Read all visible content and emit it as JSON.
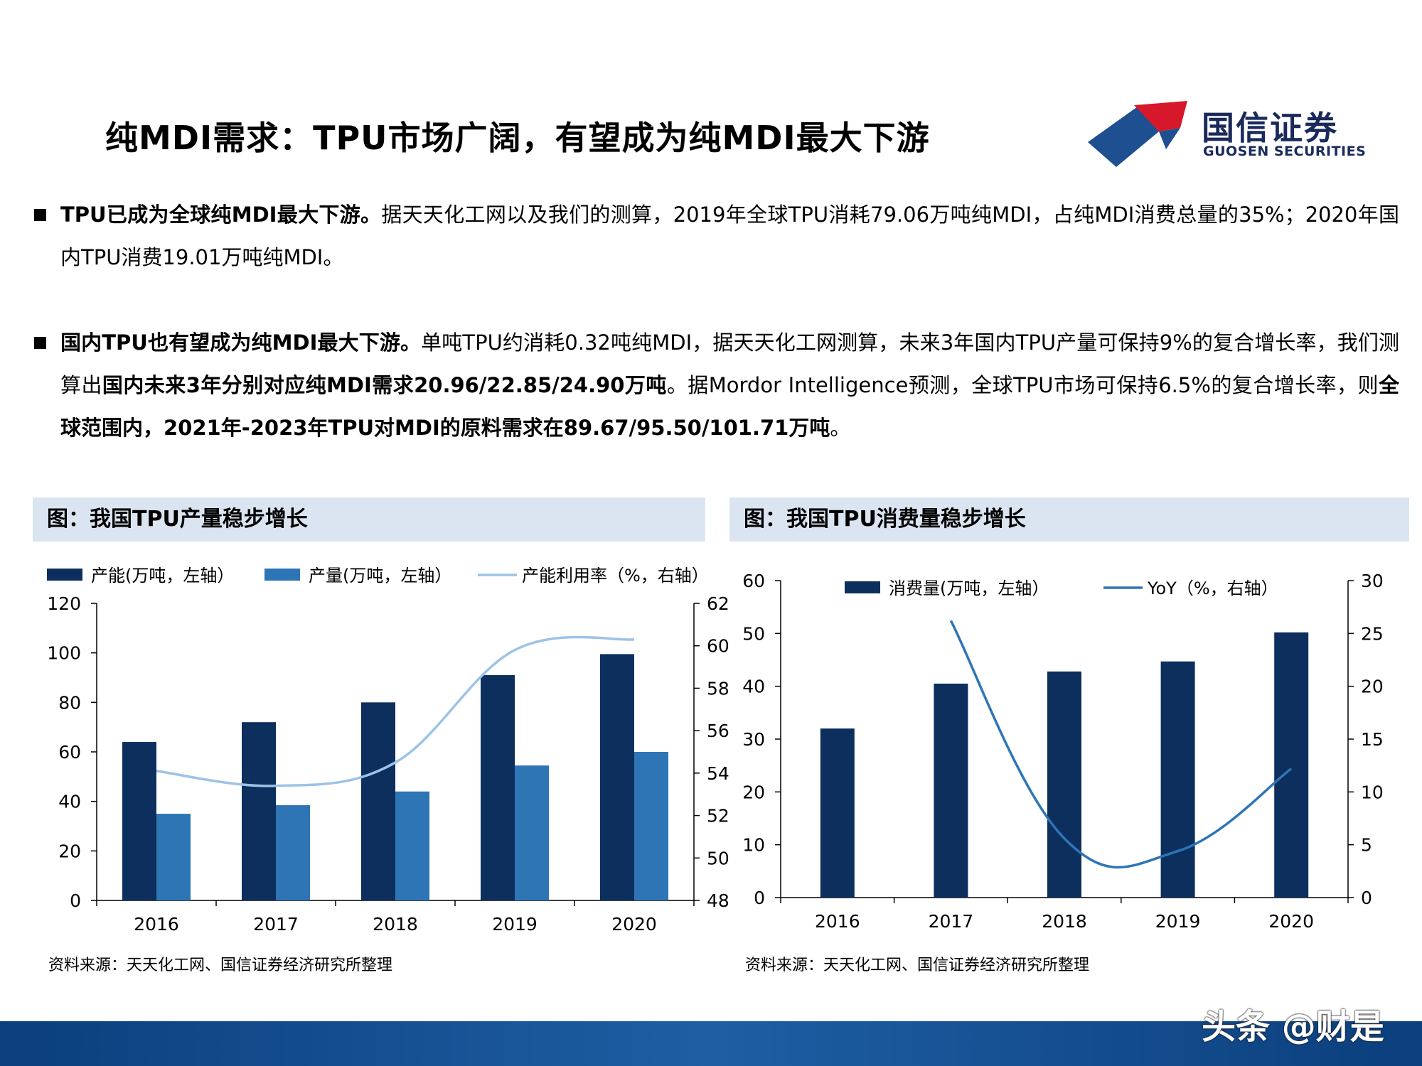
{
  "title": "纯MDI需求：TPU市场广阔，有望成为纯MDI最大下游",
  "logo": {
    "cn": "国信证券",
    "en": "GUOSEN SECURITIES"
  },
  "bullets": [
    {
      "segments": [
        {
          "text": "TPU已成为全球纯MDI最大下游。",
          "bold": true
        },
        {
          "text": "据天天化工网以及我们的测算，2019年全球TPU消耗79.06万吨纯MDI，占纯MDI消费总量的35%；2020年国内TPU消费19.01万吨纯MDI。",
          "bold": false
        }
      ]
    },
    {
      "segments": [
        {
          "text": "国内TPU也有望成为纯MDI最大下游。",
          "bold": true
        },
        {
          "text": "单吨TPU约消耗0.32吨纯MDI，据天天化工网测算，未来3年国内TPU产量可保持9%的复合增长率，我们测算出",
          "bold": false
        },
        {
          "text": "国内未来3年分别对应纯MDI需求20.96/22.85/24.90万吨",
          "bold": true
        },
        {
          "text": "。据Mordor Intelligence预测，全球TPU市场可保持6.5%的复合增长率，则",
          "bold": false
        },
        {
          "text": "全球范围内，2021年-2023年TPU对MDI的原料需求在89.67/95.50/101.71万吨",
          "bold": true
        },
        {
          "text": "。",
          "bold": false
        }
      ]
    }
  ],
  "panels": [
    {
      "header": "图：我国TPU产量稳步增长",
      "source": "资料来源：天天化工网、国信证券经济研究所整理"
    },
    {
      "header": "图：我国TPU消费量稳步增长",
      "source": "资料来源：天天化工网、国信证券经济研究所整理"
    }
  ],
  "watermark": "头条 @财是",
  "colors": {
    "dark_navy": "#0c2f5e",
    "medium_blue": "#2e75b6",
    "light_blue": "#9dc3e6",
    "line_blue": "#2e75b6",
    "header_bg": "#dbe5f1",
    "footer": "#0b3f7d"
  },
  "chart_data": [
    {
      "type": "bar",
      "categories": [
        "2016",
        "2017",
        "2018",
        "2019",
        "2020"
      ],
      "series": [
        {
          "name": "产能(万吨，左轴）",
          "kind": "bar",
          "axis": "left",
          "color": "#0c2f5e",
          "values": [
            64,
            72,
            80,
            91,
            99.5
          ]
        },
        {
          "name": "产量(万吨，左轴）",
          "kind": "bar",
          "axis": "left",
          "color": "#2e75b6",
          "values": [
            35,
            38.5,
            44,
            54.5,
            60
          ]
        },
        {
          "name": "产能利用率（%，右轴）",
          "kind": "line",
          "axis": "right",
          "color": "#9dc3e6",
          "values": [
            54.1,
            53.4,
            54.5,
            59.8,
            60.3
          ]
        }
      ],
      "yleft": {
        "min": 0,
        "max": 120,
        "ticks": [
          "0",
          "20",
          "40",
          "60",
          "80",
          "100",
          "120"
        ]
      },
      "yright": {
        "min": 48,
        "max": 62,
        "ticks": [
          "48",
          "50",
          "52",
          "54",
          "56",
          "58",
          "60",
          "62"
        ]
      },
      "legend": "top"
    },
    {
      "type": "bar",
      "categories": [
        "2016",
        "2017",
        "2018",
        "2019",
        "2020"
      ],
      "series": [
        {
          "name": "消费量(万吨，左轴）",
          "kind": "bar",
          "axis": "left",
          "color": "#0c2f5e",
          "values": [
            32,
            40.5,
            42.8,
            44.7,
            50.2
          ]
        },
        {
          "name": "YoY（%，右轴）",
          "kind": "line",
          "axis": "right",
          "color": "#2e75b6",
          "values": [
            null,
            26.2,
            5.6,
            4.4,
            12.2
          ]
        }
      ],
      "yleft": {
        "min": 0,
        "max": 60,
        "ticks": [
          "0",
          "10",
          "20",
          "30",
          "40",
          "50",
          "60"
        ]
      },
      "yright": {
        "min": 0,
        "max": 30,
        "ticks": [
          "0",
          "5",
          "10",
          "15",
          "20",
          "25",
          "30"
        ]
      },
      "legend": "top"
    }
  ]
}
